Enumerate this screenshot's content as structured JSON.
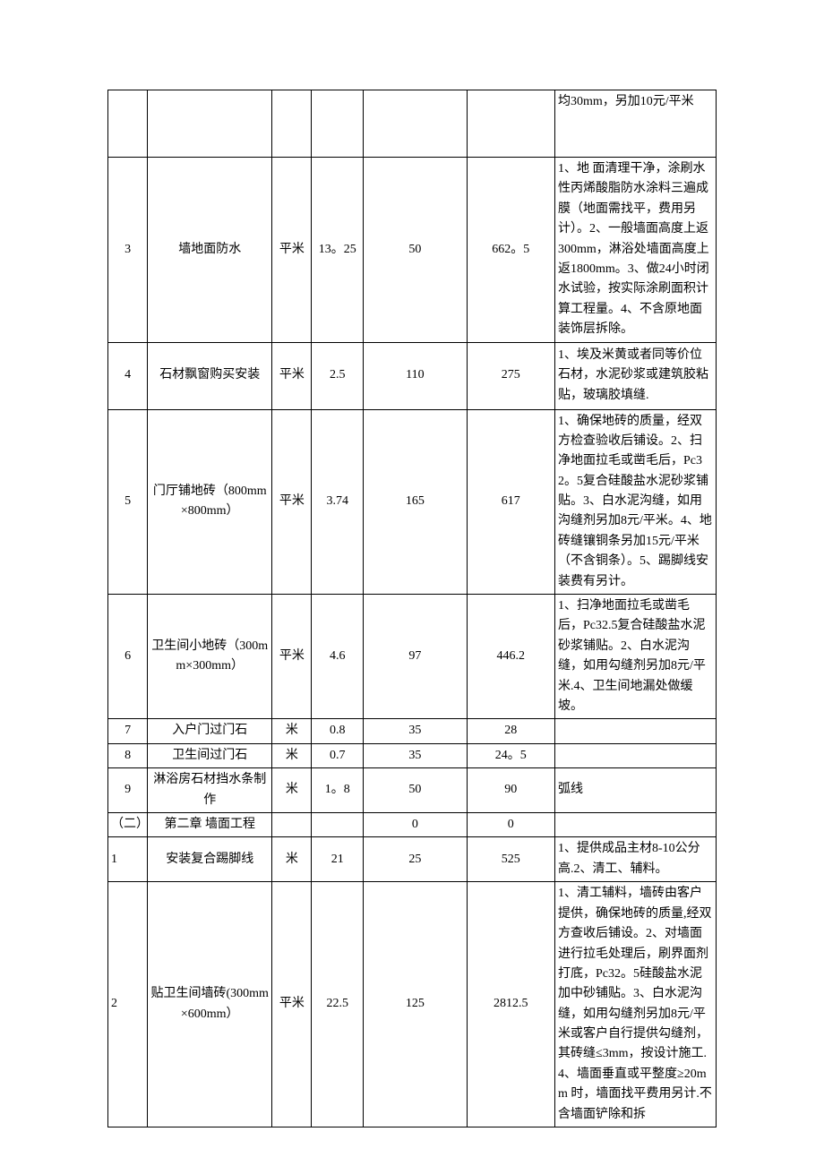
{
  "table": {
    "colors": {
      "border": "#000000",
      "text": "#000000",
      "background": "#ffffff"
    },
    "font": {
      "family": "SimSun",
      "size_pt": 10.5,
      "line_height": 1.6
    },
    "columns": [
      {
        "key": "idx",
        "width_pct": 6.5,
        "align": "center"
      },
      {
        "key": "name",
        "width_pct": 20.5,
        "align": "center"
      },
      {
        "key": "unit",
        "width_pct": 6.5,
        "align": "center"
      },
      {
        "key": "qty",
        "width_pct": 8.5,
        "align": "center"
      },
      {
        "key": "price",
        "width_pct": 17,
        "align": "center"
      },
      {
        "key": "total",
        "width_pct": 14.5,
        "align": "center"
      },
      {
        "key": "note",
        "width_pct": 26.5,
        "align": "left"
      }
    ],
    "rows": [
      {
        "idx": "",
        "name": "",
        "unit": "",
        "qty": "",
        "price": "",
        "total": "",
        "note": "均30mm，另加10元/平米"
      },
      {
        "idx": "3",
        "name": "墙地面防水",
        "unit": "平米",
        "qty": "13。25",
        "price": "50",
        "total": "662。5",
        "note": "1、地 面清理干净，涂刷水性丙烯酸脂防水涂料三遍成膜（地面需找平，费用另计）。2、一般墙面高度上返300mm，淋浴处墙面高度上返1800mm。3、做24小时闭水试验，按实际涂刷面积计算工程量。4、不含原地面装饰层拆除。"
      },
      {
        "idx": "4",
        "name": "石材飘窗购买安装",
        "unit": "平米",
        "qty": "2.5",
        "price": "110",
        "total": "275",
        "note": "1、埃及米黄或者同等价位石材，水泥砂浆或建筑胶粘贴，玻璃胶填缝."
      },
      {
        "idx": "5",
        "name": "门厅铺地砖（800mm×800mm）",
        "unit": "平米",
        "qty": "3.74",
        "price": "165",
        "total": "617",
        "note": "1、确保地砖的质量，经双方检查验收后铺设。2、扫净地面拉毛或凿毛后，Pc32。5复合硅酸盐水泥砂浆铺贴。3、白水泥沟缝，如用沟缝剂另加8元/平米。4、地砖缝镶铜条另加15元/平米（不含铜条）。5、踢脚线安装费有另计。"
      },
      {
        "idx": "6",
        "name": "卫生间小地砖（300mm×300mm）",
        "unit": "平米",
        "qty": "4.6",
        "price": "97",
        "total": "446.2",
        "note": "1、扫净地面拉毛或凿毛后，Pc32.5复合硅酸盐水泥砂浆铺贴。2、白水泥沟缝，如用勾缝剂另加8元/平米.4、卫生间地漏处做缓坡。"
      },
      {
        "idx": "7",
        "name": "入户门过门石",
        "unit": "米",
        "qty": "0.8",
        "price": "35",
        "total": "28",
        "note": ""
      },
      {
        "idx": "8",
        "name": "卫生间过门石",
        "unit": "米",
        "qty": "0.7",
        "price": "35",
        "total": "24。5",
        "note": ""
      },
      {
        "idx": "9",
        "name": "淋浴房石材挡水条制作",
        "unit": "米",
        "qty": "1。8",
        "price": "50",
        "total": "90",
        "note": "弧线"
      },
      {
        "idx": "（二）",
        "name": "第二章  墙面工程",
        "unit": "",
        "qty": "",
        "price": "0",
        "total": "0",
        "note": ""
      },
      {
        "idx": "1",
        "name": "安装复合踢脚线",
        "unit": "米",
        "qty": "21",
        "price": "25",
        "total": "525",
        "note": "1、提供成品主材8-10公分高.2、清工、辅料。"
      },
      {
        "idx": "2",
        "name": "贴卫生间墙砖(300mm×600mm）",
        "unit": "平米",
        "qty": "22.5",
        "price": "125",
        "total": "2812.5",
        "note": "1、清工辅料，墙砖由客户提供，确保地砖的质量,经双方查收后铺设。2、对墙面进行拉毛处理后，刷界面剂打底，Pc32。5硅酸盐水泥加中砂铺贴。3、白水泥沟缝，如用勾缝剂另加8元/平米或客户自行提供勾缝剂，其砖缝≤3mm，按设计施工.4、墙面垂直或平整度≥20mm 时，墙面找平费用另计.不含墙面铲除和拆"
      }
    ]
  }
}
